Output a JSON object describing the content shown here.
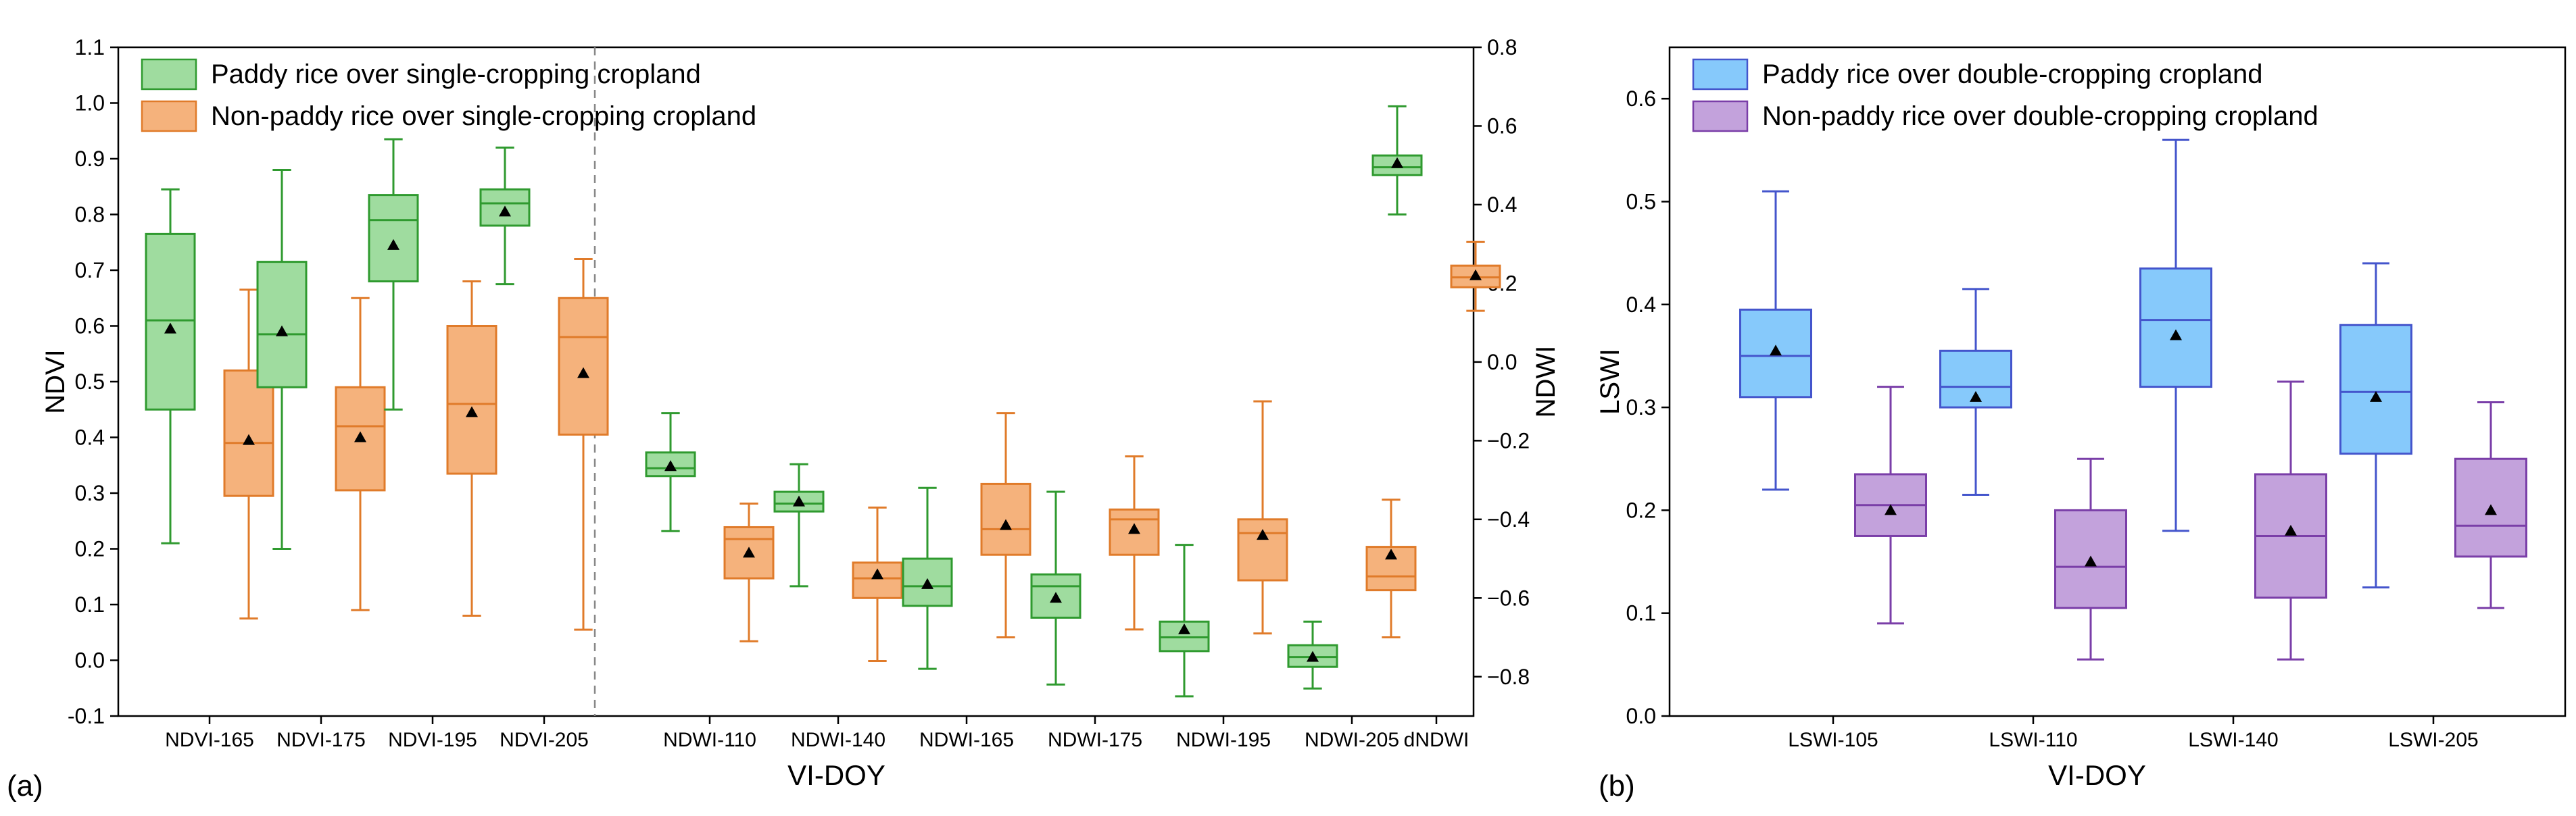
{
  "chart_data": [
    {
      "type": "boxplot",
      "panel_label": "(a)",
      "xlabel": "VI-DOY",
      "ylabel_left": "NDVI",
      "ylabel_right": "NDWI",
      "ylim_left": [
        -0.1,
        1.1
      ],
      "ylim_right": [
        -0.9,
        0.8
      ],
      "yticks_left": [
        "-0.1",
        "0.0",
        "0.1",
        "0.2",
        "0.3",
        "0.4",
        "0.5",
        "0.6",
        "0.7",
        "0.8",
        "0.9",
        "1.0",
        "1.1"
      ],
      "yticks_right": [
        "−0.8",
        "−0.6",
        "−0.4",
        "−0.2",
        "0.0",
        "0.2",
        "0.4",
        "0.6",
        "0.8"
      ],
      "legend": [
        {
          "label": "Paddy rice over single-cropping cropland",
          "color": "#9fdc9f",
          "edge": "#2f9a2f"
        },
        {
          "label": "Non-paddy rice over single-cropping cropland",
          "color": "#f5b27c",
          "edge": "#e07b2a"
        }
      ],
      "categories": [
        "NDVI-165",
        "NDVI-175",
        "NDVI-195",
        "NDVI-205",
        "NDWI-110",
        "NDWI-140",
        "NDWI-165",
        "NDWI-175",
        "NDWI-195",
        "NDWI-205",
        "dNDWI"
      ],
      "axis_for_category": [
        "left",
        "left",
        "left",
        "left",
        "right",
        "right",
        "right",
        "right",
        "right",
        "right",
        "right"
      ],
      "series": [
        {
          "name": "Paddy rice over single-cropping cropland",
          "boxes": [
            {
              "min": 0.21,
              "q1": 0.45,
              "median": 0.61,
              "q3": 0.765,
              "max": 0.845,
              "mean": 0.595
            },
            {
              "min": 0.2,
              "q1": 0.49,
              "median": 0.585,
              "q3": 0.715,
              "max": 0.88,
              "mean": 0.59
            },
            {
              "min": 0.45,
              "q1": 0.68,
              "median": 0.79,
              "q3": 0.835,
              "max": 0.935,
              "mean": 0.745
            },
            {
              "min": 0.675,
              "q1": 0.78,
              "median": 0.82,
              "q3": 0.845,
              "max": 0.92,
              "mean": 0.805
            },
            {
              "min": -0.43,
              "q1": -0.29,
              "median": -0.27,
              "q3": -0.23,
              "max": -0.13,
              "mean": -0.265
            },
            {
              "min": -0.57,
              "q1": -0.38,
              "median": -0.36,
              "q3": -0.33,
              "max": -0.26,
              "mean": -0.355
            },
            {
              "min": -0.78,
              "q1": -0.62,
              "median": -0.57,
              "q3": -0.5,
              "max": -0.32,
              "mean": -0.565
            },
            {
              "min": -0.82,
              "q1": -0.65,
              "median": -0.57,
              "q3": -0.54,
              "max": -0.33,
              "mean": -0.6
            },
            {
              "min": -0.85,
              "q1": -0.735,
              "median": -0.7,
              "q3": -0.66,
              "max": -0.465,
              "mean": -0.68
            },
            {
              "min": -0.83,
              "q1": -0.775,
              "median": -0.75,
              "q3": -0.72,
              "max": -0.66,
              "mean": -0.75
            },
            {
              "min": 0.375,
              "q1": 0.475,
              "median": 0.495,
              "q3": 0.525,
              "max": 0.65,
              "mean": 0.505
            }
          ]
        },
        {
          "name": "Non-paddy rice over single-cropping cropland",
          "boxes": [
            {
              "min": 0.075,
              "q1": 0.295,
              "median": 0.39,
              "q3": 0.52,
              "max": 0.665,
              "mean": 0.395
            },
            {
              "min": 0.09,
              "q1": 0.305,
              "median": 0.42,
              "q3": 0.49,
              "max": 0.65,
              "mean": 0.4
            },
            {
              "min": 0.08,
              "q1": 0.335,
              "median": 0.46,
              "q3": 0.6,
              "max": 0.68,
              "mean": 0.445
            },
            {
              "min": 0.055,
              "q1": 0.405,
              "median": 0.58,
              "q3": 0.65,
              "max": 0.72,
              "mean": 0.515
            },
            {
              "min": -0.71,
              "q1": -0.55,
              "median": -0.45,
              "q3": -0.42,
              "max": -0.36,
              "mean": -0.485
            },
            {
              "min": -0.76,
              "q1": -0.6,
              "median": -0.55,
              "q3": -0.51,
              "max": -0.37,
              "mean": -0.54
            },
            {
              "min": -0.7,
              "q1": -0.49,
              "median": -0.425,
              "q3": -0.31,
              "max": -0.13,
              "mean": -0.415
            },
            {
              "min": -0.68,
              "q1": -0.49,
              "median": -0.4,
              "q3": -0.375,
              "max": -0.24,
              "mean": -0.425
            },
            {
              "min": -0.69,
              "q1": -0.555,
              "median": -0.435,
              "q3": -0.4,
              "max": -0.1,
              "mean": -0.44
            },
            {
              "min": -0.7,
              "q1": -0.58,
              "median": -0.545,
              "q3": -0.47,
              "max": -0.35,
              "mean": -0.49
            },
            {
              "min": 0.13,
              "q1": 0.19,
              "median": 0.215,
              "q3": 0.245,
              "max": 0.305,
              "mean": 0.22
            }
          ]
        }
      ]
    },
    {
      "type": "boxplot",
      "panel_label": "(b)",
      "xlabel": "VI-DOY",
      "ylabel": "LSWI",
      "ylim": [
        0.0,
        0.65
      ],
      "yticks": [
        "0.0",
        "0.1",
        "0.2",
        "0.3",
        "0.4",
        "0.5",
        "0.6"
      ],
      "legend": [
        {
          "label": "Paddy rice over double-cropping cropland",
          "color": "#86c9fb",
          "edge": "#4455cc"
        },
        {
          "label": "Non-paddy rice over double-cropping cropland",
          "color": "#c3a2dc",
          "edge": "#7a3ea8"
        }
      ],
      "categories": [
        "LSWI-105",
        "LSWI-110",
        "LSWI-140",
        "LSWI-205"
      ],
      "series": [
        {
          "name": "Paddy rice over double-cropping cropland",
          "boxes": [
            {
              "min": 0.22,
              "q1": 0.31,
              "median": 0.35,
              "q3": 0.395,
              "max": 0.51,
              "mean": 0.355
            },
            {
              "min": 0.215,
              "q1": 0.3,
              "median": 0.32,
              "q3": 0.355,
              "max": 0.415,
              "mean": 0.31
            },
            {
              "min": 0.18,
              "q1": 0.32,
              "median": 0.385,
              "q3": 0.435,
              "max": 0.56,
              "mean": 0.37
            },
            {
              "min": 0.125,
              "q1": 0.255,
              "median": 0.315,
              "q3": 0.38,
              "max": 0.44,
              "mean": 0.31
            }
          ]
        },
        {
          "name": "Non-paddy rice over double-cropping cropland",
          "boxes": [
            {
              "min": 0.09,
              "q1": 0.175,
              "median": 0.205,
              "q3": 0.235,
              "max": 0.32,
              "mean": 0.2
            },
            {
              "min": 0.055,
              "q1": 0.105,
              "median": 0.145,
              "q3": 0.2,
              "max": 0.25,
              "mean": 0.15
            },
            {
              "min": 0.055,
              "q1": 0.115,
              "median": 0.175,
              "q3": 0.235,
              "max": 0.325,
              "mean": 0.18
            },
            {
              "min": 0.105,
              "q1": 0.155,
              "median": 0.185,
              "q3": 0.25,
              "max": 0.305,
              "mean": 0.2
            }
          ]
        }
      ]
    }
  ]
}
